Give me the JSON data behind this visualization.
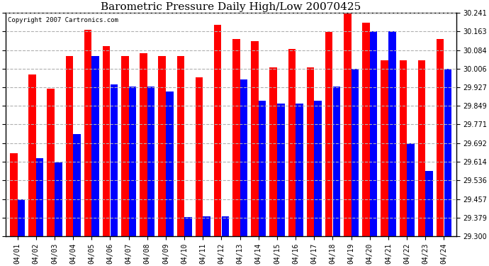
{
  "title": "Barometric Pressure Daily High/Low 20070425",
  "copyright": "Copyright 2007 Cartronics.com",
  "dates": [
    "04/01",
    "04/02",
    "04/03",
    "04/04",
    "04/05",
    "04/06",
    "04/07",
    "04/08",
    "04/09",
    "04/10",
    "04/11",
    "04/12",
    "04/13",
    "04/14",
    "04/15",
    "04/16",
    "04/17",
    "04/18",
    "04/19",
    "04/20",
    "04/21",
    "04/22",
    "04/23",
    "04/24"
  ],
  "highs": [
    29.65,
    29.98,
    29.92,
    30.06,
    30.17,
    30.1,
    30.06,
    30.07,
    30.06,
    30.06,
    29.97,
    30.19,
    30.13,
    30.12,
    30.01,
    30.09,
    30.01,
    30.16,
    30.241,
    30.2,
    30.04,
    30.04,
    30.04,
    30.13
  ],
  "lows": [
    29.457,
    29.63,
    29.61,
    29.73,
    30.06,
    29.94,
    29.93,
    29.93,
    29.91,
    29.38,
    29.385,
    29.385,
    29.96,
    29.87,
    29.86,
    29.86,
    29.87,
    29.93,
    30.006,
    30.163,
    30.163,
    29.692,
    29.575,
    30.006
  ],
  "ylim_min": 29.3,
  "ylim_max": 30.241,
  "yticks": [
    29.3,
    29.379,
    29.457,
    29.536,
    29.614,
    29.692,
    29.771,
    29.849,
    29.927,
    30.006,
    30.084,
    30.163,
    30.241
  ],
  "bar_color_high": "#FF0000",
  "bar_color_low": "#0000FF",
  "bg_color": "#FFFFFF",
  "grid_color": "#B0B0B0",
  "title_fontsize": 11,
  "tick_fontsize": 7,
  "copyright_fontsize": 6.5
}
